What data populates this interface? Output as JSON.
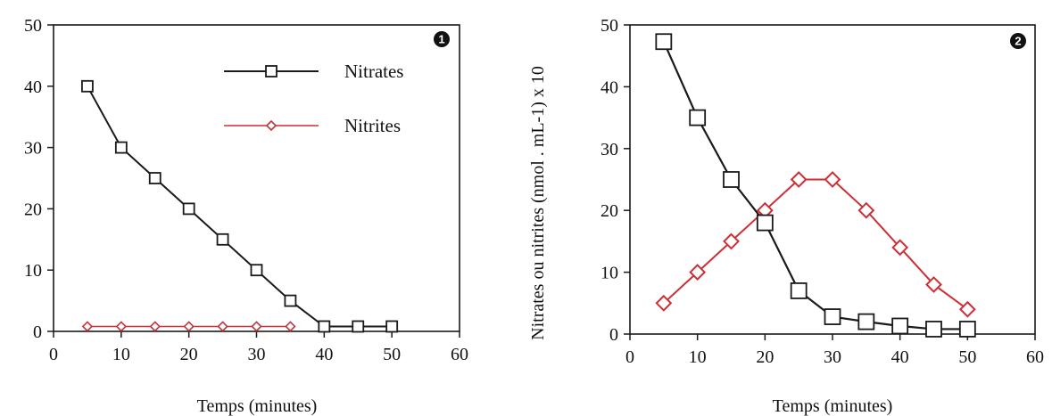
{
  "chart_data": [
    {
      "type": "line",
      "panel_label": "1",
      "xlabel": "Temps (minutes)",
      "ylabel": "Nitrates ou nitrites (nmol . mL-1) x 10",
      "xlim": [
        0,
        60
      ],
      "ylim": [
        0,
        50
      ],
      "xticks": [
        0,
        10,
        20,
        30,
        40,
        50,
        60
      ],
      "yticks": [
        0,
        10,
        20,
        30,
        40,
        50
      ],
      "legend_position": "top-right",
      "series": [
        {
          "name": "Nitrates",
          "color": "#1a1a1a",
          "marker": "square",
          "x": [
            5,
            10,
            15,
            20,
            25,
            30,
            35,
            40,
            45,
            50
          ],
          "y": [
            40,
            30,
            25,
            20,
            15,
            10,
            5,
            0.8,
            0.8,
            0.8
          ]
        },
        {
          "name": "Nitrites",
          "color": "#cc2f35",
          "marker": "diamond",
          "x": [
            5,
            10,
            15,
            20,
            25,
            30,
            35
          ],
          "y": [
            0.8,
            0.8,
            0.8,
            0.8,
            0.8,
            0.8,
            0.8
          ]
        }
      ]
    },
    {
      "type": "line",
      "panel_label": "2",
      "xlabel": "Temps (minutes)",
      "xlim": [
        0,
        60
      ],
      "ylim": [
        0,
        50
      ],
      "xticks": [
        0,
        10,
        20,
        30,
        40,
        50,
        60
      ],
      "yticks": [
        0,
        10,
        20,
        30,
        40,
        50
      ],
      "series": [
        {
          "name": "Nitrates",
          "color": "#1a1a1a",
          "marker": "square",
          "x": [
            5,
            10,
            15,
            20,
            25,
            30,
            35,
            40,
            45,
            50
          ],
          "y": [
            47.3,
            35,
            25,
            18,
            7,
            2.8,
            2,
            1.3,
            0.8,
            0.8
          ]
        },
        {
          "name": "Nitrites",
          "color": "#cc2f35",
          "marker": "diamond",
          "x": [
            5,
            10,
            15,
            20,
            25,
            30,
            35,
            40,
            45,
            50
          ],
          "y": [
            5,
            10,
            15,
            20,
            25,
            25,
            20,
            14,
            8,
            4
          ]
        }
      ]
    }
  ]
}
